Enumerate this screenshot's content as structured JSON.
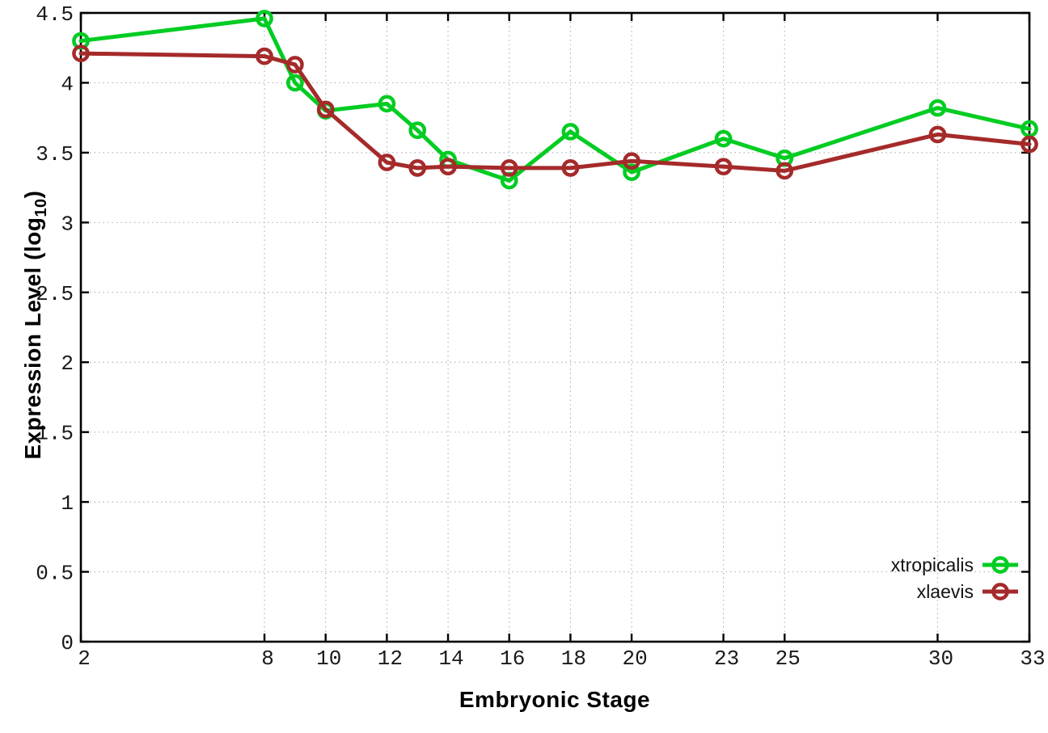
{
  "chart_data": {
    "type": "line",
    "title": "",
    "xlabel": "Embryonic Stage",
    "ylabel": {
      "pre": "Expression Level (log",
      "sub": "10",
      "post": ")"
    },
    "xlim": [
      2,
      33
    ],
    "ylim": [
      0,
      4.5
    ],
    "xticks": [
      2,
      8,
      10,
      12,
      14,
      16,
      18,
      20,
      23,
      25,
      30,
      33
    ],
    "yticks": [
      0,
      0.5,
      1,
      1.5,
      2,
      2.5,
      3,
      3.5,
      4,
      4.5
    ],
    "grid": true,
    "grid_color": "#b4b4b4",
    "axis_color": "#000000",
    "tick_label_color": "#1a1a1a",
    "legend_position": "inside-bottom-right",
    "marker_style": "open-circle",
    "series": [
      {
        "name": "xtropicalis",
        "color": "#00cc22",
        "points": [
          [
            2,
            4.3
          ],
          [
            8,
            4.46
          ],
          [
            9,
            4.0
          ],
          [
            10,
            3.8
          ],
          [
            12,
            3.85
          ],
          [
            13,
            3.66
          ],
          [
            14,
            3.45
          ],
          [
            16,
            3.3
          ],
          [
            18,
            3.65
          ],
          [
            20,
            3.36
          ],
          [
            23,
            3.6
          ],
          [
            25,
            3.46
          ],
          [
            30,
            3.82
          ],
          [
            33,
            3.67
          ]
        ]
      },
      {
        "name": "xlaevis",
        "color": "#a52a2a",
        "points": [
          [
            2,
            4.21
          ],
          [
            8,
            4.19
          ],
          [
            9,
            4.13
          ],
          [
            10,
            3.81
          ],
          [
            12,
            3.43
          ],
          [
            13,
            3.39
          ],
          [
            14,
            3.4
          ],
          [
            16,
            3.39
          ],
          [
            18,
            3.39
          ],
          [
            20,
            3.44
          ],
          [
            23,
            3.4
          ],
          [
            25,
            3.37
          ],
          [
            30,
            3.63
          ],
          [
            33,
            3.56
          ]
        ]
      }
    ]
  }
}
